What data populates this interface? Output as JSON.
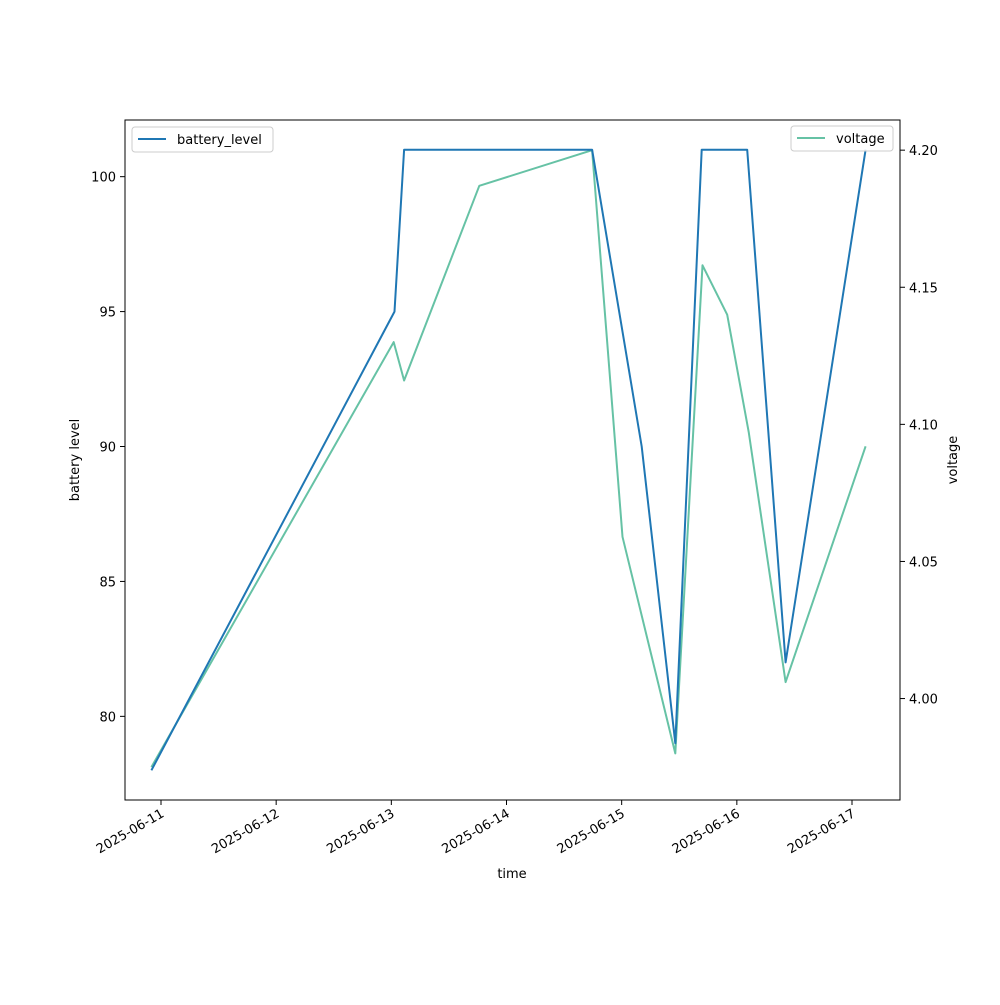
{
  "chart_data": {
    "type": "line",
    "xlabel": "time",
    "ylabel_left": "battery level",
    "ylabel_right": "voltage",
    "x_ticks": [
      "2025-06-11",
      "2025-06-12",
      "2025-06-13",
      "2025-06-14",
      "2025-06-15",
      "2025-06-16",
      "2025-06-17"
    ],
    "y_left_ticks": [
      80,
      85,
      90,
      95,
      100
    ],
    "y_right_ticks": [
      "4.00",
      "4.05",
      "4.10",
      "4.15",
      "4.20"
    ],
    "y_left_lim": [
      76.9,
      102.1
    ],
    "y_right_lim": [
      3.963,
      4.211
    ],
    "x_lim": [
      "2025-06-10T16:30",
      "2025-06-17T10:00"
    ],
    "grid": false,
    "series": [
      {
        "name": "battery_level",
        "axis": "left",
        "color": "#1f77b4",
        "legend_position": "upper-left",
        "points": [
          [
            "2025-06-10T22:00",
            78
          ],
          [
            "2025-06-13T00:40",
            95
          ],
          [
            "2025-06-13T02:40",
            101
          ],
          [
            "2025-06-14T17:50",
            101
          ],
          [
            "2025-06-15T04:10",
            90
          ],
          [
            "2025-06-15T11:10",
            79
          ],
          [
            "2025-06-15T16:40",
            101
          ],
          [
            "2025-06-16T02:10",
            101
          ],
          [
            "2025-06-16T10:10",
            82
          ],
          [
            "2025-06-17T02:50",
            101
          ]
        ]
      },
      {
        "name": "voltage",
        "axis": "right",
        "color": "#66c2a5",
        "legend_position": "upper-right",
        "points": [
          [
            "2025-06-10T22:00",
            3.975
          ],
          [
            "2025-06-13T00:30",
            4.13
          ],
          [
            "2025-06-13T02:40",
            4.116
          ],
          [
            "2025-06-13T18:20",
            4.187
          ],
          [
            "2025-06-14T17:50",
            4.2
          ],
          [
            "2025-06-15T00:10",
            4.059
          ],
          [
            "2025-06-15T11:10",
            3.98
          ],
          [
            "2025-06-15T16:50",
            4.158
          ],
          [
            "2025-06-15T22:00",
            4.14
          ],
          [
            "2025-06-16T02:30",
            4.097
          ],
          [
            "2025-06-16T10:10",
            4.006
          ],
          [
            "2025-06-17T02:50",
            4.092
          ]
        ]
      }
    ]
  }
}
